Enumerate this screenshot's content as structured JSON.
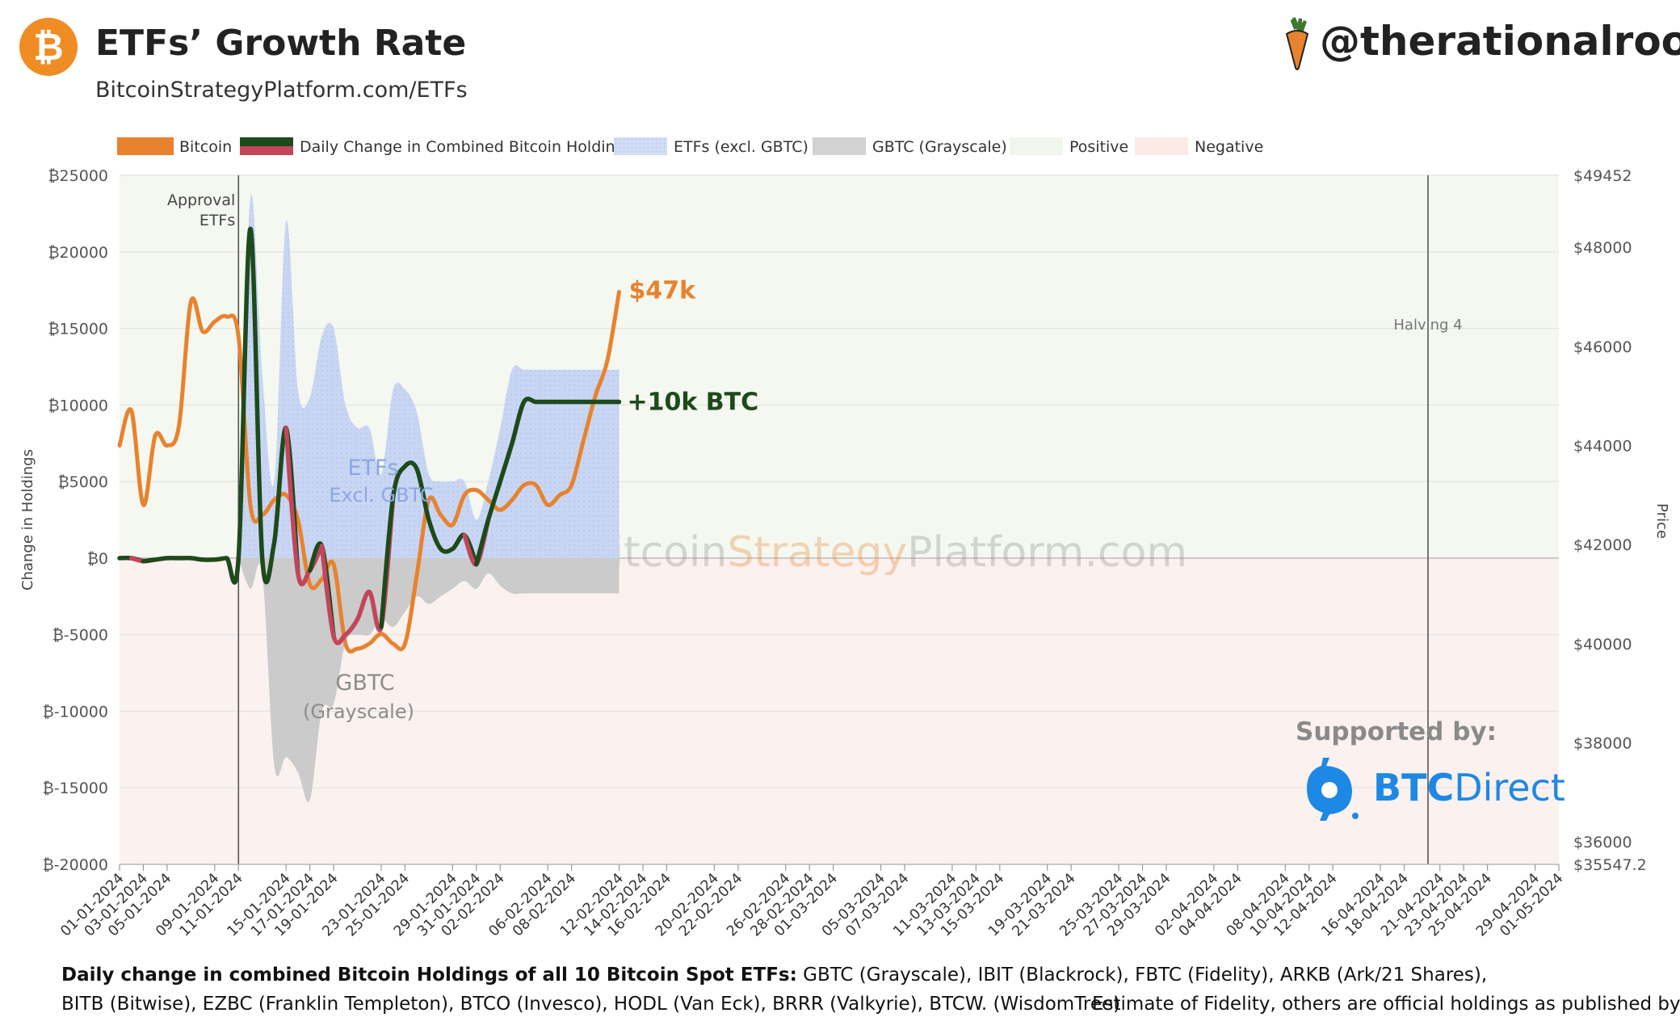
{
  "header": {
    "logo_glyph": "₿",
    "title": "ETFs’ Growth Rate",
    "subtitle": "BitcoinStrategyPlatform.com/ETFs",
    "handle": "@therationalroot"
  },
  "watermark": {
    "part1": "Bitcoin",
    "part2": "Strategy",
    "part3": "Platform.com"
  },
  "supported": {
    "label": "Supported by:",
    "brand_bold": "BTC",
    "brand_rest": "Direct"
  },
  "footer": {
    "line1_bold": "Daily change in combined Bitcoin Holdings of all 10 Bitcoin Spot ETFs:",
    "line1_rest": " GBTC (Grayscale), IBIT (Blackrock), FBTC (Fidelity), ARKB (Ark/21 Shares),",
    "line2": "BITB (Bitwise), EZBC (Franklin Templeton), BTCO (Invesco), HODL (Van Eck), BRRR (Valkyrie), BTCW. (WisdomTree)",
    "line2_right": "Estimate of Fidelity, others are official holdings as published by issuers."
  },
  "colors": {
    "bitcoin": "#e8822e",
    "change_pos": "#1d4a1a",
    "change_neg": "#c2455a",
    "etf_area": "#c4d3f2",
    "gbtc_area": "#cacaca",
    "positive_bg": "#f4f8f0",
    "negative_bg": "#fbf1ee",
    "brand_blue": "#1e88e5"
  },
  "chart_data": {
    "type": "line",
    "legend": [
      {
        "label": "Bitcoin",
        "kind": "bitcoin"
      },
      {
        "label": "Daily Change in Combined Bitcoin Holdings",
        "kind": "change"
      },
      {
        "label": "ETFs (excl. GBTC)",
        "kind": "etf"
      },
      {
        "label": "GBTC (Grayscale)",
        "kind": "gbtc"
      },
      {
        "label": "Positive",
        "kind": "positive"
      },
      {
        "label": "Negative",
        "kind": "negative"
      }
    ],
    "legend_position": "top-left",
    "ylabel_left": "Change in Holdings",
    "ylabel_right": "Price",
    "ylim_left": [
      -20000,
      25000
    ],
    "ylim_right": [
      35547.2,
      49452
    ],
    "left_ticks": [
      "₿25000",
      "₿20000",
      "₿15000",
      "₿10000",
      "₿5000",
      "₿0",
      "₿-5000",
      "₿-10000",
      "₿-15000",
      "₿-20000"
    ],
    "left_tick_values": [
      25000,
      20000,
      15000,
      10000,
      5000,
      0,
      -5000,
      -10000,
      -15000,
      -20000
    ],
    "right_ticks": [
      "$49452",
      "$48000",
      "$46000",
      "$44000",
      "$42000",
      "$40000",
      "$38000",
      "$36000",
      "$35547.2"
    ],
    "right_tick_values": [
      49452,
      48000,
      46000,
      44000,
      42000,
      40000,
      38000,
      36000,
      35547.2
    ],
    "x_start": "2024-01-01",
    "x_end": "2024-05-01",
    "x_labels": [
      "01-01-2024",
      "03-01-2024",
      "05-01-2024",
      "09-01-2024",
      "11-01-2024",
      "15-01-2024",
      "17-01-2024",
      "19-01-2024",
      "23-01-2024",
      "25-01-2024",
      "29-01-2024",
      "31-01-2024",
      "02-02-2024",
      "06-02-2024",
      "08-02-2024",
      "12-02-2024",
      "14-02-2024",
      "16-02-2024",
      "20-02-2024",
      "22-02-2024",
      "26-02-2024",
      "28-02-2024",
      "01-03-2024",
      "05-03-2024",
      "07-03-2024",
      "11-03-2024",
      "13-03-2024",
      "15-03-2024",
      "19-03-2024",
      "21-03-2024",
      "25-03-2024",
      "27-03-2024",
      "29-03-2024",
      "02-04-2024",
      "04-04-2024",
      "08-04-2024",
      "10-04-2024",
      "12-04-2024",
      "16-04-2024",
      "18-04-2024",
      "21-04-2024",
      "23-04-2024",
      "25-04-2024",
      "29-04-2024",
      "01-05-2024"
    ],
    "annotations": {
      "approval_line1": "Approval",
      "approval_line2": "ETFs",
      "approval_date": "2024-01-11",
      "halving": "Halving 4",
      "halving_date": "2024-04-20",
      "btc_price_label": "$47k",
      "holdings_label": "+10k BTC",
      "etf_label1": "ETFs",
      "etf_label2": "Excl. GBTC",
      "gbtc_label1": "GBTC",
      "gbtc_label2": "(Grayscale)"
    },
    "series": [
      {
        "name": "Bitcoin",
        "axis": "right",
        "dates": [
          "2024-01-01",
          "2024-01-02",
          "2024-01-03",
          "2024-01-04",
          "2024-01-05",
          "2024-01-06",
          "2024-01-07",
          "2024-01-08",
          "2024-01-09",
          "2024-01-10",
          "2024-01-11",
          "2024-01-12",
          "2024-01-13",
          "2024-01-14",
          "2024-01-15",
          "2024-01-16",
          "2024-01-17",
          "2024-01-18",
          "2024-01-19",
          "2024-01-20",
          "2024-01-21",
          "2024-01-22",
          "2024-01-23",
          "2024-01-24",
          "2024-01-25",
          "2024-01-26",
          "2024-01-27",
          "2024-01-28",
          "2024-01-29",
          "2024-01-30",
          "2024-01-31",
          "2024-02-01",
          "2024-02-02",
          "2024-02-03",
          "2024-02-04",
          "2024-02-05",
          "2024-02-06",
          "2024-02-07",
          "2024-02-08",
          "2024-02-09",
          "2024-02-10",
          "2024-02-11",
          "2024-02-12"
        ],
        "values": [
          44000,
          44700,
          42800,
          44200,
          44000,
          44400,
          46900,
          46300,
          46500,
          46600,
          46200,
          42800,
          42600,
          42900,
          43000,
          42500,
          41200,
          41300,
          41600,
          40000,
          39900,
          40000,
          40200,
          40000,
          40000,
          41400,
          42900,
          42600,
          42400,
          43000,
          43100,
          42900,
          42700,
          42900,
          43200,
          43200,
          42800,
          43000,
          43200,
          44100,
          45000,
          45700,
          47100
        ]
      },
      {
        "name": "Daily Change in Combined Bitcoin Holdings",
        "axis": "left",
        "dates": [
          "2024-01-01",
          "2024-01-02",
          "2024-01-03",
          "2024-01-04",
          "2024-01-05",
          "2024-01-06",
          "2024-01-07",
          "2024-01-08",
          "2024-01-09",
          "2024-01-10",
          "2024-01-11",
          "2024-01-12",
          "2024-01-13",
          "2024-01-14",
          "2024-01-15",
          "2024-01-16",
          "2024-01-17",
          "2024-01-18",
          "2024-01-19",
          "2024-01-20",
          "2024-01-21",
          "2024-01-22",
          "2024-01-23",
          "2024-01-24",
          "2024-01-25",
          "2024-01-26",
          "2024-01-27",
          "2024-01-28",
          "2024-01-29",
          "2024-01-30",
          "2024-01-31",
          "2024-02-01",
          "2024-02-02",
          "2024-02-03",
          "2024-02-04",
          "2024-02-05",
          "2024-02-06",
          "2024-02-07",
          "2024-02-08",
          "2024-02-09",
          "2024-02-10",
          "2024-02-11",
          "2024-02-12"
        ],
        "values": [
          0,
          0,
          -200,
          -100,
          0,
          0,
          0,
          -100,
          -100,
          0,
          0,
          21500,
          0,
          1000,
          8500,
          -1000,
          -800,
          800,
          -5100,
          -5000,
          -4000,
          -2200,
          -4500,
          4000,
          6000,
          5800,
          2500,
          600,
          600,
          1500,
          -400,
          2500,
          5000,
          7500,
          10200,
          10200,
          10200,
          10200,
          10200,
          10200,
          10200,
          10200,
          10200
        ]
      },
      {
        "name": "ETFs (excl. GBTC)",
        "axis": "left",
        "dates": [
          "2024-01-11",
          "2024-01-12",
          "2024-01-13",
          "2024-01-14",
          "2024-01-15",
          "2024-01-16",
          "2024-01-17",
          "2024-01-18",
          "2024-01-19",
          "2024-01-20",
          "2024-01-21",
          "2024-01-22",
          "2024-01-23",
          "2024-01-24",
          "2024-01-25",
          "2024-01-26",
          "2024-01-27",
          "2024-01-28",
          "2024-01-29",
          "2024-01-30",
          "2024-01-31",
          "2024-02-01",
          "2024-02-02",
          "2024-02-03",
          "2024-02-04",
          "2024-02-05",
          "2024-02-06",
          "2024-02-07",
          "2024-02-08",
          "2024-02-09",
          "2024-02-10",
          "2024-02-11",
          "2024-02-12"
        ],
        "values": [
          0,
          23500,
          12000,
          5000,
          22000,
          11000,
          10500,
          14500,
          15000,
          10000,
          8500,
          8500,
          5500,
          11000,
          11000,
          9500,
          5500,
          5000,
          5000,
          5000,
          2500,
          5000,
          8500,
          12300,
          12300,
          12300,
          12300,
          12300,
          12300,
          12300,
          12300,
          12300,
          12300
        ]
      },
      {
        "name": "GBTC (Grayscale)",
        "axis": "left",
        "dates": [
          "2024-01-11",
          "2024-01-12",
          "2024-01-13",
          "2024-01-14",
          "2024-01-15",
          "2024-01-16",
          "2024-01-17",
          "2024-01-18",
          "2024-01-19",
          "2024-01-20",
          "2024-01-21",
          "2024-01-22",
          "2024-01-23",
          "2024-01-24",
          "2024-01-25",
          "2024-01-26",
          "2024-01-27",
          "2024-01-28",
          "2024-01-29",
          "2024-01-30",
          "2024-01-31",
          "2024-02-01",
          "2024-02-02",
          "2024-02-03",
          "2024-02-04",
          "2024-02-05",
          "2024-02-06",
          "2024-02-07",
          "2024-02-08",
          "2024-02-09",
          "2024-02-10",
          "2024-02-11",
          "2024-02-12"
        ],
        "values": [
          0,
          -2000,
          -1000,
          -13500,
          -13000,
          -14000,
          -15800,
          -10000,
          -9500,
          -5500,
          -5000,
          -5000,
          -4000,
          -4500,
          -3500,
          -2500,
          -3000,
          -2500,
          -2000,
          -1500,
          -2000,
          -1000,
          -1800,
          -2300,
          -2300,
          -2300,
          -2300,
          -2300,
          -2300,
          -2300,
          -2300,
          -2300,
          -2300
        ]
      }
    ]
  }
}
